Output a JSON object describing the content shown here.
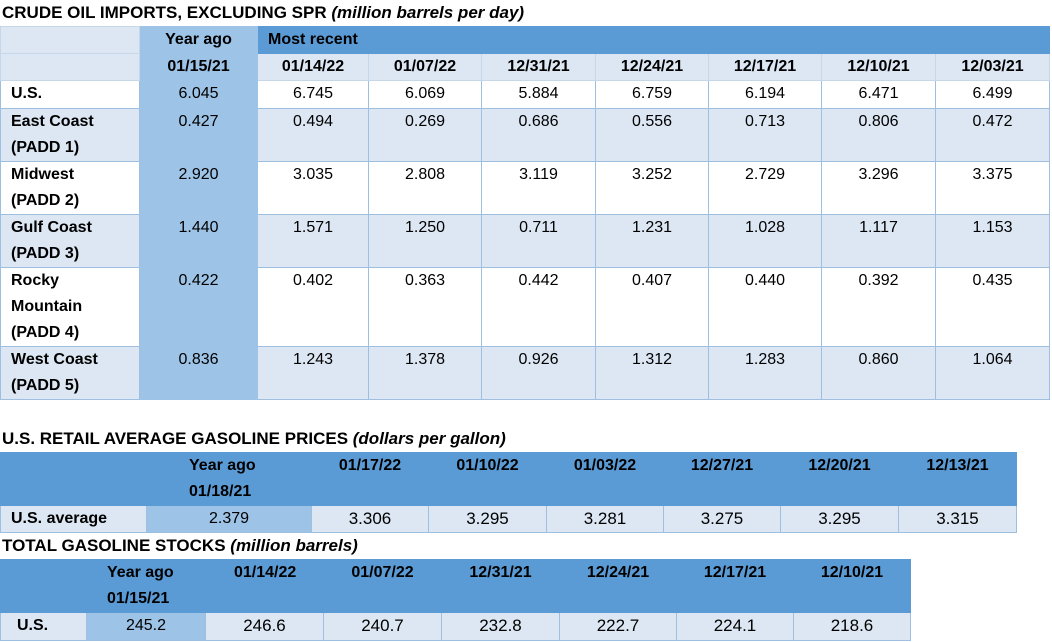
{
  "crude_oil": {
    "title": "CRUDE OIL IMPORTS, EXCLUDING SPR",
    "unit": "(million barrels per day)",
    "year_ago_label": "Year ago",
    "most_recent_label": "Most recent",
    "dates": [
      "01/15/21",
      "01/14/22",
      "01/07/22",
      "12/31/21",
      "12/24/21",
      "12/17/21",
      "12/10/21",
      "12/03/21"
    ],
    "rows": [
      {
        "name": [
          "U.S."
        ],
        "values": [
          "6.045",
          "6.745",
          "6.069",
          "5.884",
          "6.759",
          "6.194",
          "6.471",
          "6.499"
        ]
      },
      {
        "name": [
          "East Coast",
          "(PADD 1)"
        ],
        "values": [
          "0.427",
          "0.494",
          "0.269",
          "0.686",
          "0.556",
          "0.713",
          "0.806",
          "0.472"
        ]
      },
      {
        "name": [
          "Midwest",
          "(PADD 2)"
        ],
        "values": [
          "2.920",
          "3.035",
          "2.808",
          "3.119",
          "3.252",
          "2.729",
          "3.296",
          "3.375"
        ]
      },
      {
        "name": [
          "Gulf Coast",
          "(PADD 3)"
        ],
        "values": [
          "1.440",
          "1.571",
          "1.250",
          "0.711",
          "1.231",
          "1.028",
          "1.117",
          "1.153"
        ]
      },
      {
        "name": [
          "Rocky",
          "Mountain",
          "(PADD 4)"
        ],
        "values": [
          "0.422",
          "0.402",
          "0.363",
          "0.442",
          "0.407",
          "0.440",
          "0.392",
          "0.435"
        ]
      },
      {
        "name": [
          "West Coast",
          "(PADD 5)"
        ],
        "values": [
          "0.836",
          "1.243",
          "1.378",
          "0.926",
          "1.312",
          "1.283",
          "0.860",
          "1.064"
        ]
      }
    ]
  },
  "gasoline_prices": {
    "title": "U.S. RETAIL AVERAGE GASOLINE PRICES",
    "unit": "(dollars per gallon)",
    "year_ago_label": "Year ago",
    "year_ago_date": "01/18/21",
    "dates": [
      "01/17/22",
      "01/10/22",
      "01/03/22",
      "12/27/21",
      "12/20/21",
      "12/13/21"
    ],
    "row_name": "U.S. average",
    "year_ago_value": "2.379",
    "values": [
      "3.306",
      "3.295",
      "3.281",
      "3.275",
      "3.295",
      "3.315"
    ]
  },
  "gasoline_stocks": {
    "title": "TOTAL GASOLINE STOCKS",
    "unit": "(million barrels)",
    "year_ago_label": "Year ago",
    "year_ago_date": "01/15/21",
    "dates": [
      "01/14/22",
      "01/07/22",
      "12/31/21",
      "12/24/21",
      "12/17/21",
      "12/10/21"
    ],
    "row_name": "U.S.",
    "year_ago_value": "245.2",
    "values": [
      "246.6",
      "240.7",
      "232.8",
      "222.7",
      "224.1",
      "218.6"
    ]
  }
}
